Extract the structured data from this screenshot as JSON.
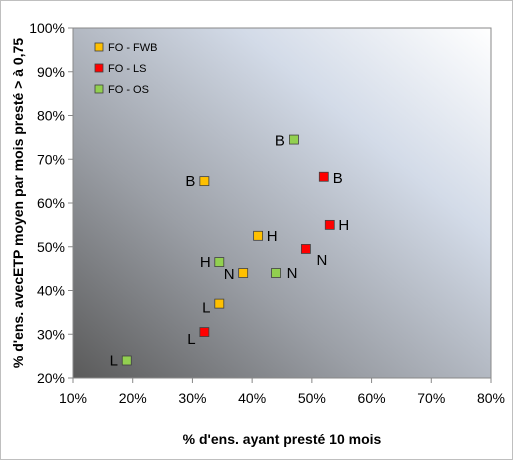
{
  "chart_data": {
    "type": "scatter",
    "xlabel": "% d'ens. ayant presté 10 mois",
    "ylabel": "% d'ens. avecETP moyen par mois presté  > à 0,75",
    "xlim": [
      10,
      80
    ],
    "ylim": [
      20,
      100
    ],
    "x_ticks": [
      "10%",
      "20%",
      "30%",
      "40%",
      "50%",
      "60%",
      "70%",
      "80%"
    ],
    "y_ticks": [
      "20%",
      "30%",
      "40%",
      "50%",
      "60%",
      "70%",
      "80%",
      "90%",
      "100%"
    ],
    "legend_position": "top-left",
    "grid": false,
    "series": [
      {
        "name": "FO - FWB",
        "color": "#ffc000",
        "points": [
          {
            "label": "B",
            "x": 32,
            "y": 65
          },
          {
            "label": "H",
            "x": 41,
            "y": 52.5
          },
          {
            "label": "N",
            "x": 38.5,
            "y": 44
          },
          {
            "label": "L",
            "x": 34.5,
            "y": 37
          }
        ]
      },
      {
        "name": "FO - LS",
        "color": "#ff0000",
        "points": [
          {
            "label": "B",
            "x": 52,
            "y": 66
          },
          {
            "label": "H",
            "x": 53,
            "y": 55
          },
          {
            "label": "N",
            "x": 49,
            "y": 49.5
          },
          {
            "label": "L",
            "x": 32,
            "y": 30.5
          }
        ]
      },
      {
        "name": "FO - OS",
        "color": "#92d050",
        "points": [
          {
            "label": "B",
            "x": 47,
            "y": 74.5
          },
          {
            "label": "H",
            "x": 34.5,
            "y": 46.5
          },
          {
            "label": "N",
            "x": 44,
            "y": 44
          },
          {
            "label": "L",
            "x": 19,
            "y": 24
          }
        ]
      }
    ]
  }
}
